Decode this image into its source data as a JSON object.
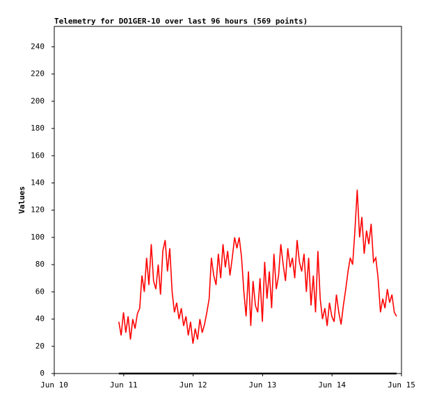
{
  "chart_data": {
    "type": "line",
    "title": "Telemetry for DO1GER-10 over last 96 hours (569 points)",
    "y_label": "Values",
    "xlim": [
      10,
      15
    ],
    "xticks": [
      {
        "value": 10,
        "label": "Jun 10"
      },
      {
        "value": 11,
        "label": "Jun 11"
      },
      {
        "value": 12,
        "label": "Jun 12"
      },
      {
        "value": 13,
        "label": "Jun 13"
      },
      {
        "value": 14,
        "label": "Jun 14"
      },
      {
        "value": 15,
        "label": "Jun 15"
      }
    ],
    "ylim": [
      0,
      255
    ],
    "yticks": [
      0,
      20,
      40,
      60,
      80,
      100,
      120,
      140,
      160,
      180,
      200,
      220,
      240
    ],
    "grid": false,
    "series": [
      {
        "color": "#ff0000",
        "x": [
          10.93,
          10.963,
          10.997,
          11.03,
          11.063,
          11.097,
          11.13,
          11.163,
          11.197,
          11.23,
          11.263,
          11.297,
          11.33,
          11.363,
          11.397,
          11.43,
          11.463,
          11.497,
          11.53,
          11.563,
          11.597,
          11.63,
          11.663,
          11.697,
          11.73,
          11.763,
          11.797,
          11.83,
          11.863,
          11.897,
          11.93,
          11.963,
          11.997,
          12.03,
          12.063,
          12.097,
          12.13,
          12.163,
          12.197,
          12.23,
          12.263,
          12.297,
          12.33,
          12.363,
          12.397,
          12.43,
          12.463,
          12.497,
          12.53,
          12.563,
          12.597,
          12.63,
          12.663,
          12.697,
          12.73,
          12.763,
          12.797,
          12.83,
          12.863,
          12.897,
          12.93,
          12.963,
          12.997,
          13.03,
          13.063,
          13.097,
          13.13,
          13.163,
          13.197,
          13.23,
          13.263,
          13.297,
          13.33,
          13.363,
          13.397,
          13.43,
          13.463,
          13.497,
          13.53,
          13.563,
          13.597,
          13.63,
          13.663,
          13.697,
          13.73,
          13.763,
          13.797,
          13.83,
          13.863,
          13.897,
          13.93,
          13.963,
          13.997,
          14.03,
          14.063,
          14.097,
          14.13,
          14.163,
          14.197,
          14.23,
          14.263,
          14.297,
          14.33,
          14.363,
          14.397,
          14.43,
          14.463,
          14.497,
          14.53,
          14.563,
          14.597,
          14.63,
          14.663,
          14.697,
          14.73,
          14.763,
          14.797,
          14.83,
          14.863,
          14.897,
          14.93
        ],
        "values": [
          38,
          28,
          45,
          30,
          42,
          25,
          40,
          33,
          44,
          48,
          72,
          60,
          85,
          65,
          95,
          68,
          62,
          80,
          58,
          90,
          98,
          75,
          92,
          60,
          45,
          52,
          40,
          48,
          35,
          42,
          28,
          38,
          22,
          33,
          25,
          40,
          30,
          36,
          45,
          55,
          85,
          72,
          65,
          88,
          70,
          95,
          78,
          90,
          72,
          85,
          100,
          92,
          100,
          85,
          60,
          42,
          75,
          35,
          68,
          50,
          45,
          70,
          38,
          82,
          55,
          75,
          48,
          88,
          62,
          72,
          95,
          80,
          68,
          92,
          78,
          85,
          70,
          98,
          82,
          75,
          88,
          60,
          85,
          50,
          72,
          45,
          90,
          55,
          40,
          48,
          35,
          52,
          42,
          38,
          58,
          45,
          36,
          50,
          62,
          75,
          85,
          80,
          105,
          135,
          100,
          115,
          88,
          105,
          95,
          110,
          82,
          85,
          70,
          45,
          55,
          48,
          62,
          52,
          58,
          45,
          42
        ]
      },
      {
        "color": "#000000",
        "x": [
          10.93,
          14.93
        ],
        "values": [
          0,
          0
        ]
      }
    ]
  }
}
